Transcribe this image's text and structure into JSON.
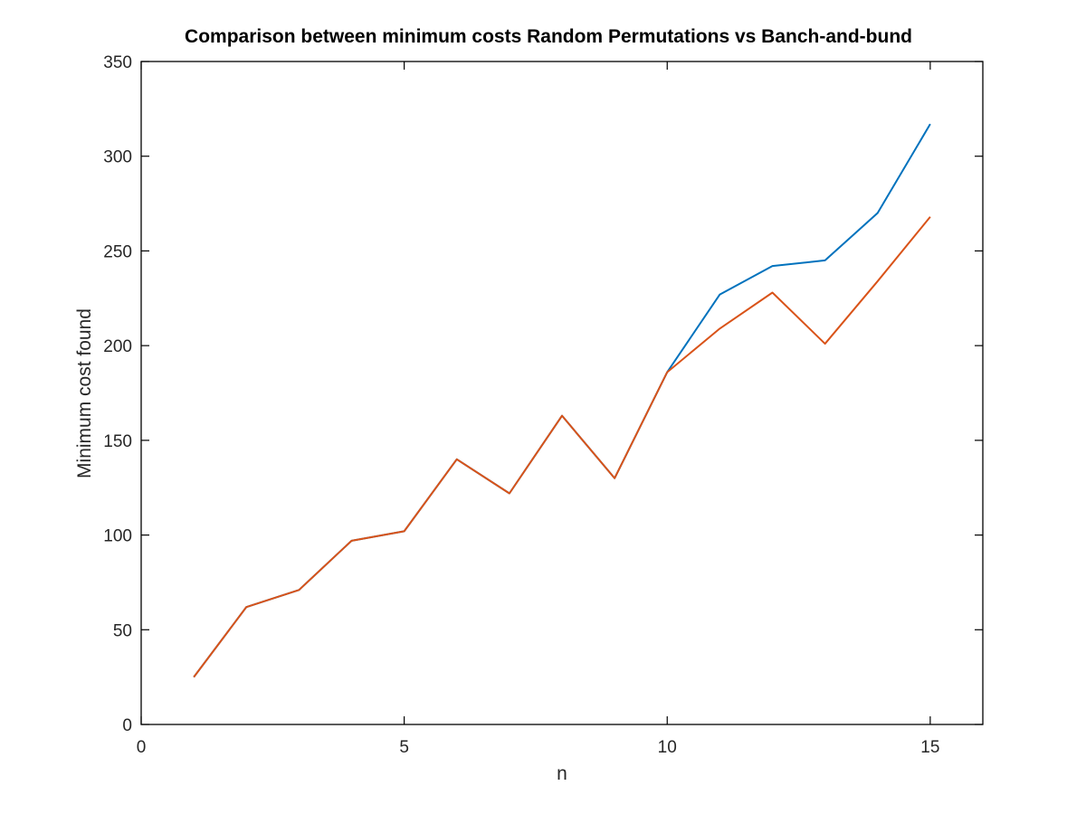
{
  "chart_data": {
    "type": "line",
    "title": "Comparison between minimum costs Random Permutations vs Banch-and-bund",
    "xlabel": "n",
    "ylabel": "Minimum cost found",
    "xlim": [
      0,
      16
    ],
    "ylim": [
      0,
      350
    ],
    "xticks": [
      0,
      5,
      10,
      15
    ],
    "yticks": [
      0,
      50,
      100,
      150,
      200,
      250,
      300,
      350
    ],
    "grid": false,
    "legend": "none",
    "x": [
      1,
      2,
      3,
      4,
      5,
      6,
      7,
      8,
      9,
      10,
      11,
      12,
      13,
      14,
      15
    ],
    "series": [
      {
        "color": "#0072BD",
        "values": [
          25,
          62,
          71,
          97,
          102,
          140,
          122,
          163,
          130,
          186,
          227,
          242,
          245,
          270,
          317
        ]
      },
      {
        "color": "#D95319",
        "values": [
          25,
          62,
          71,
          97,
          102,
          140,
          122,
          163,
          130,
          186,
          209,
          228,
          201,
          234,
          268
        ]
      }
    ]
  }
}
